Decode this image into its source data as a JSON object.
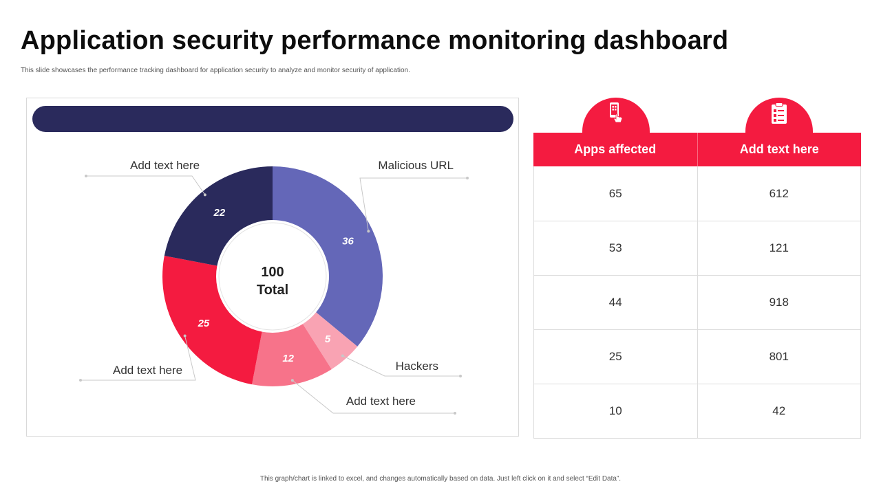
{
  "header": {
    "title": "Application security performance monitoring dashboard",
    "subtitle": "This slide showcases the performance tracking dashboard for application security to analyze and monitor security of application."
  },
  "chart_data": {
    "type": "pie",
    "variant": "donut",
    "center_value": "100",
    "center_label": "Total",
    "slices": [
      {
        "label": "Malicious URL",
        "value": 36,
        "color": "#6467b8"
      },
      {
        "label": "Hackers",
        "value": 5,
        "color": "#f9a3b3"
      },
      {
        "label": "Add text here",
        "value": 12,
        "color": "#f7738a"
      },
      {
        "label": "Add text here",
        "value": 25,
        "color": "#f41b40"
      },
      {
        "label": "Add text here",
        "value": 22,
        "color": "#2a2a5c"
      }
    ]
  },
  "table": {
    "icons": [
      "mobile-tap-icon",
      "clipboard-checklist-icon"
    ],
    "headers": [
      "Apps affected",
      "Add text here"
    ],
    "rows": [
      [
        "65",
        "612"
      ],
      [
        "53",
        "121"
      ],
      [
        "44",
        "918"
      ],
      [
        "25",
        "801"
      ],
      [
        "10",
        "42"
      ]
    ]
  },
  "colors": {
    "accent": "#f41b40",
    "navy": "#2a2a5c"
  },
  "footer": {
    "note": "This graph/chart is linked to excel, and changes automatically based on data. Just left click on it and select “Edit Data”."
  }
}
